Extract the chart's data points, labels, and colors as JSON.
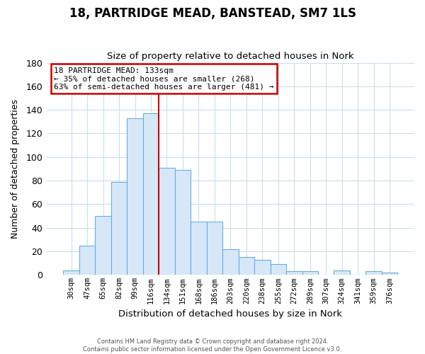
{
  "title": "18, PARTRIDGE MEAD, BANSTEAD, SM7 1LS",
  "subtitle": "Size of property relative to detached houses in Nork",
  "xlabel": "Distribution of detached houses by size in Nork",
  "ylabel": "Number of detached properties",
  "bar_labels": [
    "30sqm",
    "47sqm",
    "65sqm",
    "82sqm",
    "99sqm",
    "116sqm",
    "134sqm",
    "151sqm",
    "168sqm",
    "186sqm",
    "203sqm",
    "220sqm",
    "238sqm",
    "255sqm",
    "272sqm",
    "289sqm",
    "307sqm",
    "324sqm",
    "341sqm",
    "359sqm",
    "376sqm"
  ],
  "bar_values": [
    4,
    25,
    50,
    79,
    133,
    137,
    91,
    89,
    45,
    45,
    22,
    15,
    13,
    9,
    3,
    3,
    0,
    4,
    0,
    3,
    2
  ],
  "bar_color": "#d6e8f8",
  "bar_edge_color": "#6aaed6",
  "highlight_line_x_label": "134sqm",
  "highlight_line_color": "#cc0000",
  "annotation_title": "18 PARTRIDGE MEAD: 133sqm",
  "annotation_line1": "← 35% of detached houses are smaller (268)",
  "annotation_line2": "63% of semi-detached houses are larger (481) →",
  "annotation_box_edge_color": "#cc0000",
  "ylim": [
    0,
    180
  ],
  "yticks": [
    0,
    20,
    40,
    60,
    80,
    100,
    120,
    140,
    160,
    180
  ],
  "footer_line1": "Contains HM Land Registry data © Crown copyright and database right 2024.",
  "footer_line2": "Contains public sector information licensed under the Open Government Licence v3.0.",
  "background_color": "#ffffff",
  "grid_color": "#c8dff0"
}
